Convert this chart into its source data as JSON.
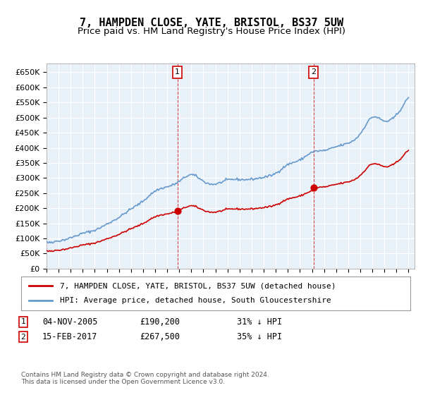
{
  "title": "7, HAMPDEN CLOSE, YATE, BRISTOL, BS37 5UW",
  "subtitle": "Price paid vs. HM Land Registry's House Price Index (HPI)",
  "ylabel": "",
  "ylim": [
    0,
    680000
  ],
  "yticks": [
    0,
    50000,
    100000,
    150000,
    200000,
    250000,
    300000,
    350000,
    400000,
    450000,
    500000,
    550000,
    600000,
    650000
  ],
  "xlim_start": 1995.0,
  "xlim_end": 2025.5,
  "background_color": "#e8f0f8",
  "plot_bg": "#e8f0f8",
  "hpi_color": "#6699cc",
  "price_color": "#cc0000",
  "sale1_date": 2005.84,
  "sale1_price": 190200,
  "sale2_date": 2017.12,
  "sale2_price": 267500,
  "legend_label_price": "7, HAMPDEN CLOSE, YATE, BRISTOL, BS37 5UW (detached house)",
  "legend_label_hpi": "HPI: Average price, detached house, South Gloucestershire",
  "annotation1_label": "1",
  "annotation2_label": "2",
  "table_row1": "1    04-NOV-2005         £190,200         31% ↓ HPI",
  "table_row2": "2    15-FEB-2017         £267,500         35% ↓ HPI",
  "footer": "Contains HM Land Registry data © Crown copyright and database right 2024.\nThis data is licensed under the Open Government Licence v3.0.",
  "title_fontsize": 11,
  "subtitle_fontsize": 9.5
}
